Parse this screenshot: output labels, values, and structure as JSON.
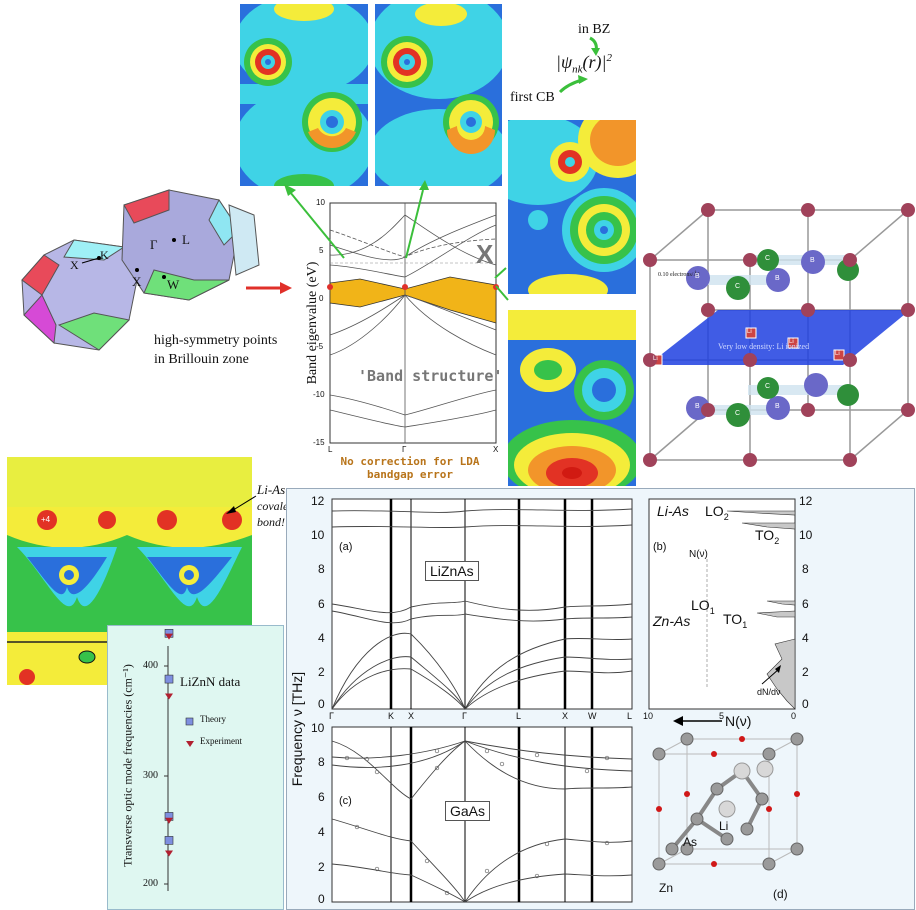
{
  "colors": {
    "contour_blue": "#2a6fdc",
    "contour_cyan": "#3fd3e6",
    "contour_green": "#37c24a",
    "contour_yellow": "#f4ec3a",
    "contour_orange": "#f2952a",
    "contour_red": "#e23224",
    "band_fill": "#f1b418",
    "arrow_green": "#3bbf3b",
    "arrow_red": "#e0302a",
    "atom_maroon": "#a0425a",
    "plane_blue": "#1f3fe0",
    "phonon_panel_bg": "#eef6fb",
    "lizn_panel_bg": "#dff7f1"
  },
  "bz": {
    "label_K": "K",
    "label_X1": "X",
    "label_X2": "X",
    "label_Gamma": "Γ",
    "label_L": "L",
    "label_W": "W",
    "caption_line1": "high-symmetry points",
    "caption_line2": "in Brillouin zone"
  },
  "wavefn": {
    "line1": "in BZ",
    "formula_psi": "|ψ",
    "formula_sub": "nk",
    "formula_rest": "(r)|",
    "formula_sup": "2",
    "first_cb": "first CB"
  },
  "band": {
    "ylabel": "Band eigenvalue (eV)",
    "title": "'Band structure'",
    "note_line1": "No correction for LDA",
    "note_line2": "bandgap error",
    "ticks_y": [
      "10",
      "5",
      "0",
      "-5",
      "-10",
      "-15"
    ],
    "ticks_x": [
      "L",
      "Γ",
      "X"
    ],
    "x_marker": "X"
  },
  "crystal": {
    "density_label": "0.10 electrons/Å³",
    "plane_label": "Very low density: Li ionized",
    "atom_labels": [
      "B",
      "C",
      "B",
      "C",
      "B",
      "Li",
      "Li",
      "Li",
      "Li",
      "B",
      "C",
      "B",
      "C"
    ]
  },
  "charge": {
    "annot_line1": "Li-As",
    "annot_line2": "covalent",
    "annot_line3": "bond!",
    "site_label": "+4"
  },
  "lizn": {
    "title": "LiZnN data",
    "ylabel": "Transverse optic mode frequencies (cm⁻¹)",
    "legend_theory": "Theory",
    "legend_experiment": "Experiment",
    "ticks": [
      "400",
      "300",
      "200"
    ]
  },
  "phonon": {
    "ylabel": "Frequency ν [THz]",
    "panel_a": "(a)",
    "panel_b": "(b)",
    "panel_c": "(c)",
    "panel_d": "(d)",
    "compound_a": "LiZnAs",
    "compound_c": "GaAs",
    "yticks_a": [
      "12",
      "10",
      "8",
      "6",
      "4",
      "2",
      "0"
    ],
    "yticks_c": [
      "10",
      "8",
      "6",
      "4",
      "2",
      "0"
    ],
    "xticks": [
      "Γ",
      "K",
      "X",
      "Γ",
      "L",
      "X",
      "W",
      "L"
    ],
    "dos_yticks": [
      "12",
      "10",
      "8",
      "6",
      "4",
      "2",
      "0"
    ],
    "dos_xticks": [
      "10",
      "5",
      "0"
    ],
    "dos_xlabel": "N(ν)",
    "nv_label": "N(ν)",
    "li_as": "Li-As",
    "zn_as": "Zn-As",
    "lo2": "LO",
    "lo2_sub": "2",
    "to2": "TO",
    "to2_sub": "2",
    "lo1": "LO",
    "lo1_sub": "1",
    "to1": "TO",
    "to1_sub": "1",
    "dndv": "dN/dν",
    "label_as": "As",
    "label_li": "Li",
    "label_zn": "Zn"
  },
  "chart_data": {
    "type": "scatter",
    "title": "LiZnN data",
    "ylabel": "Transverse optic mode frequencies (cm⁻¹)",
    "ylim": [
      190,
      440
    ],
    "series": [
      {
        "name": "Theory",
        "values": [
          430,
          388,
          262,
          240
        ]
      },
      {
        "name": "Experiment",
        "values": [
          427,
          372,
          258,
          228
        ]
      }
    ]
  }
}
